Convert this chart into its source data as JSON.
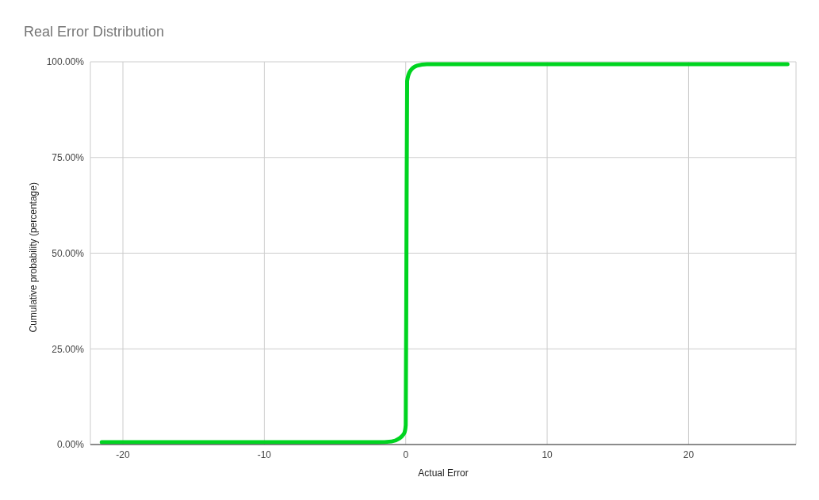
{
  "chart_data": {
    "type": "line",
    "title": "Real Error Distribution",
    "xlabel": "Actual Error",
    "ylabel": "Cumulative probability (percentage)",
    "series": [
      {
        "color": "#00d420",
        "x": [
          -21.5,
          -2,
          -1,
          -0.5,
          -0.1,
          0,
          0.05,
          0.1,
          0.3,
          0.8,
          1.5,
          27
        ],
        "values": [
          0.6,
          0.6,
          0.8,
          1.5,
          3,
          5,
          50,
          95,
          97.5,
          99,
          99.4,
          99.4
        ]
      }
    ],
    "xlim": [
      -22.3,
      27.6
    ],
    "xticks": [
      -20,
      -10,
      0,
      10,
      20
    ],
    "ylim": [
      0,
      100
    ],
    "yticks": [
      {
        "value": 0,
        "label": "0.00%"
      },
      {
        "value": 25,
        "label": "25.00%"
      },
      {
        "value": 50,
        "label": "50.00%"
      },
      {
        "value": 75,
        "label": "75.00%"
      },
      {
        "value": 100,
        "label": "100.00%"
      }
    ],
    "grid": true,
    "legend": false,
    "marker": "none",
    "line_style": "solid"
  }
}
